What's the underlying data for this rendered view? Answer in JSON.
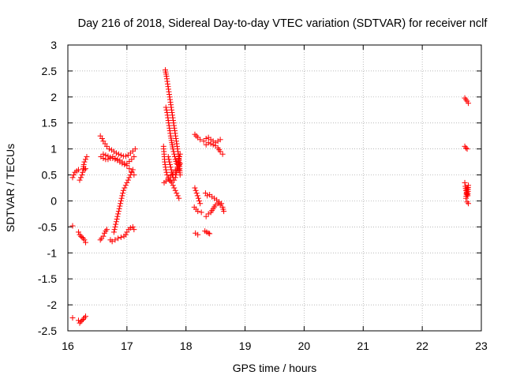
{
  "chart_data": {
    "type": "scatter",
    "title": "Day 216 of 2018, Sidereal Day-to-day VTEC variation (SDTVAR) for receiver nclf",
    "xlabel": "GPS time / hours",
    "ylabel": "SDTVAR / TECUs",
    "xlim": [
      16,
      23
    ],
    "ylim": [
      -2.5,
      3
    ],
    "xticks": [
      "16",
      "17",
      "18",
      "19",
      "20",
      "21",
      "22",
      "23"
    ],
    "yticks": [
      "3",
      "2.5",
      "2",
      "1.5",
      "1",
      "0.5",
      "0",
      "-0.5",
      "-1",
      "-1.5",
      "-2",
      "-2.5"
    ],
    "grid": true,
    "marker": "+",
    "color": "#ff0000",
    "segments": [
      [
        [
          16.08,
          0.45
        ],
        [
          16.12,
          0.55
        ],
        [
          16.18,
          0.6
        ]
      ],
      [
        [
          16.2,
          0.4
        ],
        [
          16.22,
          0.45
        ],
        [
          16.24,
          0.5
        ],
        [
          16.25,
          0.55
        ],
        [
          16.26,
          0.62
        ],
        [
          16.27,
          0.7
        ],
        [
          16.28,
          0.75
        ],
        [
          16.3,
          0.8
        ],
        [
          16.32,
          0.85
        ]
      ],
      [
        [
          16.28,
          0.6
        ],
        [
          16.3,
          0.62
        ]
      ],
      [
        [
          16.08,
          -0.48
        ]
      ],
      [
        [
          16.18,
          -0.6
        ],
        [
          16.2,
          -0.65
        ],
        [
          16.22,
          -0.68
        ],
        [
          16.24,
          -0.7
        ],
        [
          16.26,
          -0.72
        ],
        [
          16.28,
          -0.75
        ],
        [
          16.3,
          -0.8
        ]
      ],
      [
        [
          16.08,
          -2.25
        ]
      ],
      [
        [
          16.18,
          -2.3
        ],
        [
          16.2,
          -2.35
        ],
        [
          16.22,
          -2.32
        ],
        [
          16.24,
          -2.3
        ],
        [
          16.26,
          -2.28
        ],
        [
          16.28,
          -2.25
        ],
        [
          16.3,
          -2.22
        ]
      ],
      [
        [
          16.55,
          1.25
        ],
        [
          16.58,
          1.2
        ],
        [
          16.6,
          1.15
        ],
        [
          16.63,
          1.1
        ],
        [
          16.66,
          1.05
        ],
        [
          16.7,
          1.0
        ],
        [
          16.74,
          0.98
        ],
        [
          16.78,
          0.95
        ],
        [
          16.82,
          0.92
        ],
        [
          16.86,
          0.9
        ],
        [
          16.9,
          0.88
        ],
        [
          16.94,
          0.86
        ],
        [
          16.98,
          0.86
        ],
        [
          17.02,
          0.88
        ],
        [
          17.06,
          0.92
        ],
        [
          17.1,
          0.96
        ],
        [
          17.14,
          1.0
        ]
      ],
      [
        [
          16.56,
          0.85
        ],
        [
          16.6,
          0.82
        ],
        [
          16.64,
          0.8
        ],
        [
          16.68,
          0.8
        ],
        [
          16.72,
          0.82
        ],
        [
          16.76,
          0.85
        ],
        [
          16.8,
          0.82
        ],
        [
          16.84,
          0.8
        ],
        [
          16.88,
          0.78
        ],
        [
          16.92,
          0.75
        ],
        [
          16.96,
          0.72
        ],
        [
          17.0,
          0.68
        ],
        [
          17.04,
          0.62
        ],
        [
          17.08,
          0.56
        ],
        [
          17.12,
          0.5
        ]
      ],
      [
        [
          16.6,
          0.9
        ],
        [
          16.64,
          0.88
        ],
        [
          16.68,
          0.86
        ],
        [
          16.72,
          0.84
        ],
        [
          16.76,
          0.82
        ],
        [
          16.8,
          0.8
        ],
        [
          16.84,
          0.78
        ],
        [
          16.88,
          0.75
        ],
        [
          16.92,
          0.72
        ],
        [
          16.96,
          0.7
        ],
        [
          17.0,
          0.72
        ],
        [
          17.04,
          0.76
        ],
        [
          17.08,
          0.8
        ],
        [
          17.12,
          0.85
        ]
      ],
      [
        [
          16.78,
          -0.6
        ],
        [
          16.8,
          -0.5
        ],
        [
          16.82,
          -0.4
        ],
        [
          16.84,
          -0.3
        ],
        [
          16.86,
          -0.2
        ],
        [
          16.88,
          -0.1
        ],
        [
          16.9,
          0.0
        ],
        [
          16.92,
          0.1
        ],
        [
          16.94,
          0.2
        ],
        [
          16.96,
          0.25
        ],
        [
          16.98,
          0.3
        ],
        [
          17.0,
          0.35
        ],
        [
          17.02,
          0.4
        ],
        [
          17.04,
          0.45
        ],
        [
          17.06,
          0.5
        ],
        [
          17.08,
          0.55
        ],
        [
          17.1,
          0.6
        ]
      ],
      [
        [
          16.55,
          -0.75
        ],
        [
          16.57,
          -0.72
        ],
        [
          16.6,
          -0.68
        ],
        [
          16.62,
          -0.62
        ],
        [
          16.64,
          -0.58
        ],
        [
          16.66,
          -0.55
        ]
      ],
      [
        [
          16.72,
          -0.75
        ],
        [
          16.75,
          -0.78
        ],
        [
          16.8,
          -0.75
        ],
        [
          16.85,
          -0.72
        ],
        [
          16.9,
          -0.7
        ],
        [
          16.95,
          -0.68
        ],
        [
          16.98,
          -0.65
        ],
        [
          17.0,
          -0.6
        ],
        [
          17.03,
          -0.55
        ],
        [
          17.06,
          -0.52
        ],
        [
          17.1,
          -0.5
        ],
        [
          17.12,
          -0.55
        ]
      ],
      [
        [
          17.65,
          2.52
        ],
        [
          17.67,
          2.4
        ],
        [
          17.69,
          2.25
        ],
        [
          17.71,
          2.1
        ],
        [
          17.73,
          1.95
        ],
        [
          17.75,
          1.8
        ],
        [
          17.77,
          1.65
        ],
        [
          17.79,
          1.5
        ],
        [
          17.81,
          1.35
        ],
        [
          17.83,
          1.2
        ],
        [
          17.85,
          1.05
        ],
        [
          17.87,
          0.9
        ],
        [
          17.89,
          0.7
        ],
        [
          17.9,
          0.5
        ]
      ],
      [
        [
          17.66,
          1.8
        ],
        [
          17.68,
          1.7
        ],
        [
          17.7,
          1.55
        ],
        [
          17.72,
          1.4
        ],
        [
          17.74,
          1.25
        ],
        [
          17.76,
          1.12
        ],
        [
          17.78,
          1.0
        ],
        [
          17.8,
          0.9
        ],
        [
          17.82,
          0.8
        ],
        [
          17.84,
          0.72
        ],
        [
          17.86,
          0.65
        ],
        [
          17.88,
          0.6
        ]
      ],
      [
        [
          17.62,
          1.05
        ],
        [
          17.63,
          0.9
        ],
        [
          17.64,
          0.75
        ],
        [
          17.66,
          0.6
        ],
        [
          17.68,
          0.5
        ],
        [
          17.7,
          0.45
        ],
        [
          17.72,
          0.4
        ],
        [
          17.74,
          0.38
        ],
        [
          17.76,
          0.35
        ],
        [
          17.78,
          0.3
        ],
        [
          17.8,
          0.25
        ],
        [
          17.82,
          0.2
        ],
        [
          17.84,
          0.15
        ],
        [
          17.86,
          0.1
        ],
        [
          17.88,
          0.05
        ]
      ],
      [
        [
          17.63,
          0.35
        ],
        [
          17.66,
          0.38
        ],
        [
          17.7,
          0.42
        ],
        [
          17.74,
          0.48
        ],
        [
          17.78,
          0.52
        ],
        [
          17.82,
          0.58
        ],
        [
          17.86,
          0.62
        ],
        [
          17.88,
          0.68
        ],
        [
          17.9,
          0.72
        ]
      ],
      [
        [
          17.7,
          0.85
        ],
        [
          17.72,
          0.75
        ],
        [
          17.74,
          0.65
        ],
        [
          17.76,
          0.55
        ],
        [
          17.78,
          0.45
        ],
        [
          17.8,
          0.4
        ],
        [
          17.82,
          0.45
        ],
        [
          17.84,
          0.55
        ],
        [
          17.86,
          0.7
        ],
        [
          17.88,
          0.8
        ],
        [
          17.9,
          0.9
        ]
      ],
      [
        [
          18.15,
          1.28
        ],
        [
          18.2,
          1.22
        ],
        [
          18.24,
          1.18
        ]
      ],
      [
        [
          18.3,
          1.15
        ],
        [
          18.34,
          1.2
        ],
        [
          18.38,
          1.22
        ],
        [
          18.42,
          1.18
        ],
        [
          18.46,
          1.15
        ],
        [
          18.5,
          1.12
        ],
        [
          18.54,
          1.15
        ],
        [
          18.58,
          1.18
        ]
      ],
      [
        [
          18.34,
          1.08
        ],
        [
          18.38,
          1.12
        ],
        [
          18.42,
          1.1
        ],
        [
          18.46,
          1.08
        ],
        [
          18.5,
          1.06
        ],
        [
          18.54,
          1.02
        ],
        [
          18.58,
          0.95
        ],
        [
          18.62,
          0.9
        ]
      ],
      [
        [
          18.15,
          0.25
        ],
        [
          18.18,
          0.15
        ],
        [
          18.21,
          0.05
        ],
        [
          18.24,
          -0.05
        ]
      ],
      [
        [
          18.14,
          -0.12
        ],
        [
          18.2,
          -0.2
        ],
        [
          18.26,
          -0.22
        ]
      ],
      [
        [
          18.33,
          0.15
        ],
        [
          18.36,
          0.1
        ],
        [
          18.4,
          0.12
        ],
        [
          18.44,
          0.08
        ],
        [
          18.48,
          0.05
        ],
        [
          18.52,
          0.02
        ],
        [
          18.56,
          -0.02
        ],
        [
          18.6,
          -0.05
        ],
        [
          18.62,
          -0.12
        ],
        [
          18.64,
          -0.2
        ]
      ],
      [
        [
          18.34,
          -0.3
        ],
        [
          18.38,
          -0.25
        ],
        [
          18.42,
          -0.22
        ],
        [
          18.46,
          -0.15
        ],
        [
          18.5,
          -0.08
        ],
        [
          18.54,
          -0.05
        ],
        [
          18.58,
          -0.08
        ]
      ],
      [
        [
          18.16,
          -0.62
        ],
        [
          18.2,
          -0.65
        ]
      ],
      [
        [
          18.32,
          -0.58
        ],
        [
          18.35,
          -0.6
        ],
        [
          18.38,
          -0.62
        ],
        [
          18.4,
          -0.63
        ]
      ],
      [
        [
          22.72,
          1.98
        ],
        [
          22.74,
          1.95
        ],
        [
          22.76,
          1.92
        ],
        [
          22.78,
          1.88
        ]
      ],
      [
        [
          22.72,
          1.05
        ],
        [
          22.74,
          1.02
        ],
        [
          22.76,
          1.0
        ]
      ],
      [
        [
          22.72,
          0.35
        ],
        [
          22.73,
          0.28
        ],
        [
          22.74,
          0.2
        ],
        [
          22.75,
          0.15
        ],
        [
          22.76,
          0.12
        ],
        [
          22.77,
          0.1
        ],
        [
          22.78,
          0.3
        ],
        [
          22.76,
          0.25
        ],
        [
          22.74,
          0.05
        ],
        [
          22.76,
          -0.02
        ],
        [
          22.78,
          -0.05
        ]
      ]
    ]
  }
}
